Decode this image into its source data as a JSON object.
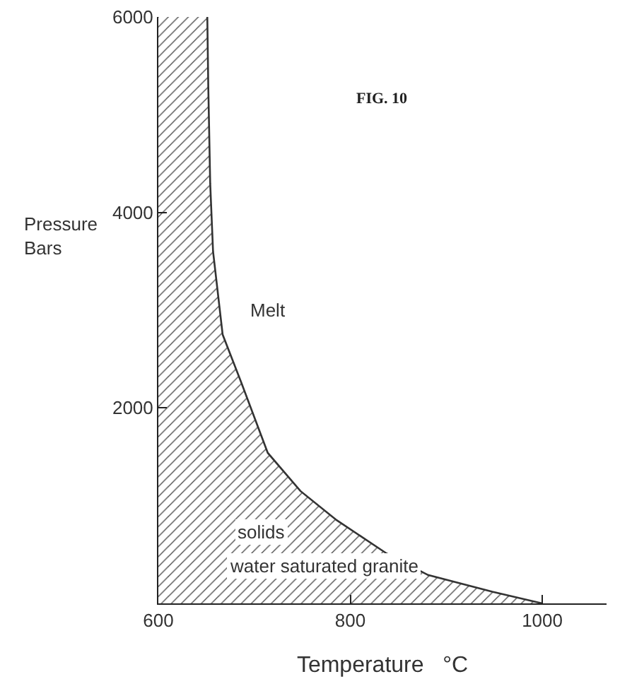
{
  "chart_data": {
    "type": "area",
    "xlabel": "Temperature   °C",
    "ylabel": "Pressure\nBars",
    "annotations": [
      "FIG. 10",
      "Melt",
      "solids",
      "water saturated granite"
    ],
    "series": [
      {
        "color": "#333333",
        "x": [
          651,
          652,
          654,
          657,
          667,
          686,
          714,
          748,
          786,
          838,
          881,
          948,
          1000
        ],
        "values": [
          6000,
          5300,
          4300,
          3600,
          2750,
          2270,
          1540,
          1150,
          850,
          510,
          290,
          120,
          0
        ]
      }
    ],
    "xlim": [
      600,
      1067
    ],
    "ylim": [
      0,
      6000
    ],
    "xticks": [
      600,
      800,
      1000
    ],
    "yticks": [
      2000,
      4000,
      6000
    ],
    "grid": false,
    "legend": false
  }
}
